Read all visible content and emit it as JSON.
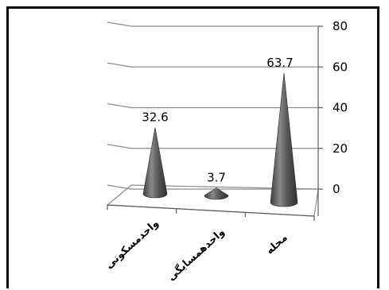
{
  "chart_data": {
    "type": "bar",
    "style": "3d-cone",
    "categories": [
      "واحدمسکونی",
      "واحدهمسایگی",
      "محله"
    ],
    "values": [
      32.6,
      3.7,
      63.7
    ],
    "data_labels": [
      "32.6",
      "3.7",
      "63.7"
    ],
    "ylim": [
      0,
      80
    ],
    "yticks": [
      0,
      20,
      40,
      60,
      80
    ],
    "ytick_labels": [
      "0",
      "20",
      "40",
      "60",
      "80"
    ],
    "grid": true,
    "legend": "none",
    "colors": {
      "cone": "#5a5a5a",
      "grid": "#8c8c8c",
      "axis": "#595959"
    }
  }
}
